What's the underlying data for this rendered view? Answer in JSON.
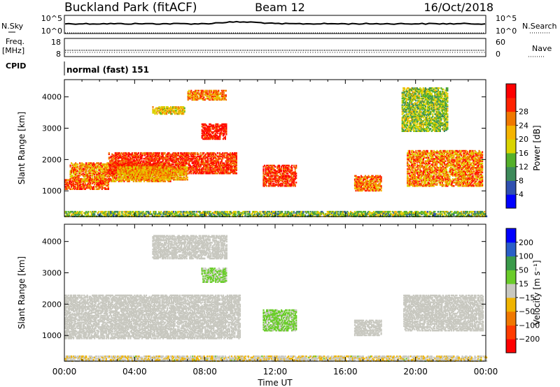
{
  "header": {
    "station": "Buckland Park (fitACF)",
    "beam": "Beam 12",
    "date": "16/Oct/2018"
  },
  "strip": {
    "nsky_label": "N.Sky",
    "nsky_ticks": [
      "10^5",
      "10^0"
    ],
    "nsearch_label": "N.Search",
    "nsearch_ticks": [
      "10^5",
      "10^0"
    ],
    "freq_label": "Freq.",
    "freq_unit": "[MHz]",
    "freq_ticks": [
      "18",
      "8"
    ],
    "nave_label": "Nave",
    "nave_ticks": [
      "60",
      "0"
    ],
    "cpid_label": "CPID",
    "cpid_value": "normal (fast) 151"
  },
  "colors": {
    "power_scale": [
      "#0000ff",
      "#3050b0",
      "#3d8a5a",
      "#54b02a",
      "#d9d400",
      "#f5b400",
      "#f07800",
      "#ff2200",
      "#ff0000"
    ],
    "velocity_scale": [
      "#0000ff",
      "#2a5fc8",
      "#3a9a4a",
      "#6acc2a",
      "#c8c8c0",
      "#f0b400",
      "#f07800",
      "#ff3c00",
      "#ff0000"
    ]
  },
  "chart_data": [
    {
      "type": "heatmap",
      "panel": "power",
      "x": {
        "label": "",
        "ticks": [
          "00:00",
          "04:00",
          "08:00",
          "12:00",
          "16:00",
          "20:00",
          "00:00"
        ],
        "range_hours": [
          0,
          24
        ]
      },
      "ylabel": "Slant Range [km]",
      "yticks": [
        1000,
        2000,
        3000,
        4000
      ],
      "ylim": [
        180,
        4550
      ],
      "colorbar": {
        "label": "Power [dB]",
        "ticks": [
          "4",
          "8",
          "12",
          "16",
          "20",
          "24",
          "28"
        ],
        "range": [
          0,
          30
        ]
      },
      "echo_regions": [
        {
          "t0": 0.0,
          "t1": 24.0,
          "r0": 180,
          "r1": 330,
          "v0": 6,
          "v1": 18
        },
        {
          "t0": 0.0,
          "t1": 2.5,
          "r0": 1050,
          "r1": 1350,
          "v0": 18,
          "v1": 30
        },
        {
          "t0": 0.3,
          "t1": 6.0,
          "r0": 1300,
          "r1": 1900,
          "v0": 14,
          "v1": 28
        },
        {
          "t0": 2.5,
          "t1": 9.8,
          "r0": 1550,
          "r1": 2200,
          "v0": 20,
          "v1": 30
        },
        {
          "t0": 3.0,
          "t1": 7.0,
          "r0": 1350,
          "r1": 1750,
          "v0": 14,
          "v1": 24
        },
        {
          "t0": 7.8,
          "t1": 9.2,
          "r0": 2650,
          "r1": 3150,
          "v0": 22,
          "v1": 30
        },
        {
          "t0": 5.0,
          "t1": 6.8,
          "r0": 3450,
          "r1": 3700,
          "v0": 12,
          "v1": 22
        },
        {
          "t0": 7.0,
          "t1": 9.2,
          "r0": 3900,
          "r1": 4200,
          "v0": 16,
          "v1": 26
        },
        {
          "t0": 11.3,
          "t1": 13.2,
          "r0": 1150,
          "r1": 1800,
          "v0": 20,
          "v1": 30
        },
        {
          "t0": 16.5,
          "t1": 18.0,
          "r0": 1000,
          "r1": 1500,
          "v0": 16,
          "v1": 28
        },
        {
          "t0": 19.5,
          "t1": 23.8,
          "r0": 1150,
          "r1": 2300,
          "v0": 14,
          "v1": 28
        },
        {
          "t0": 19.2,
          "t1": 21.8,
          "r0": 2900,
          "r1": 4300,
          "v0": 8,
          "v1": 18
        }
      ]
    },
    {
      "type": "heatmap",
      "panel": "velocity",
      "x": {
        "label": "Time UT",
        "ticks": [
          "00:00",
          "04:00",
          "08:00",
          "12:00",
          "16:00",
          "20:00",
          "00:00"
        ],
        "range_hours": [
          0,
          24
        ]
      },
      "ylabel": "Slant Range [km]",
      "yticks": [
        1000,
        2000,
        3000,
        4000
      ],
      "ylim": [
        180,
        4550
      ],
      "colorbar": {
        "label": "Velocity [m s⁻¹]",
        "ticks": [
          "200",
          "100",
          "50",
          "15",
          "−15",
          "−50",
          "−100",
          "−200"
        ],
        "range": [
          -250,
          250
        ]
      },
      "echo_regions": [
        {
          "t0": 0.0,
          "t1": 24.0,
          "r0": 180,
          "r1": 330,
          "v0": -60,
          "v1": 30
        },
        {
          "t0": 0.0,
          "t1": 10.0,
          "r0": 900,
          "r1": 2300,
          "v0": -12,
          "v1": 12
        },
        {
          "t0": 5.0,
          "t1": 9.2,
          "r0": 3450,
          "r1": 4200,
          "v0": -12,
          "v1": 12
        },
        {
          "t0": 7.8,
          "t1": 9.2,
          "r0": 2700,
          "r1": 3150,
          "v0": 15,
          "v1": 60
        },
        {
          "t0": 11.3,
          "t1": 13.2,
          "r0": 1150,
          "r1": 1800,
          "v0": 20,
          "v1": 45
        },
        {
          "t0": 16.5,
          "t1": 18.0,
          "r0": 1000,
          "r1": 1500,
          "v0": -20,
          "v1": 10
        },
        {
          "t0": 19.3,
          "t1": 23.8,
          "r0": 1150,
          "r1": 2300,
          "v0": -12,
          "v1": 12
        }
      ]
    }
  ]
}
